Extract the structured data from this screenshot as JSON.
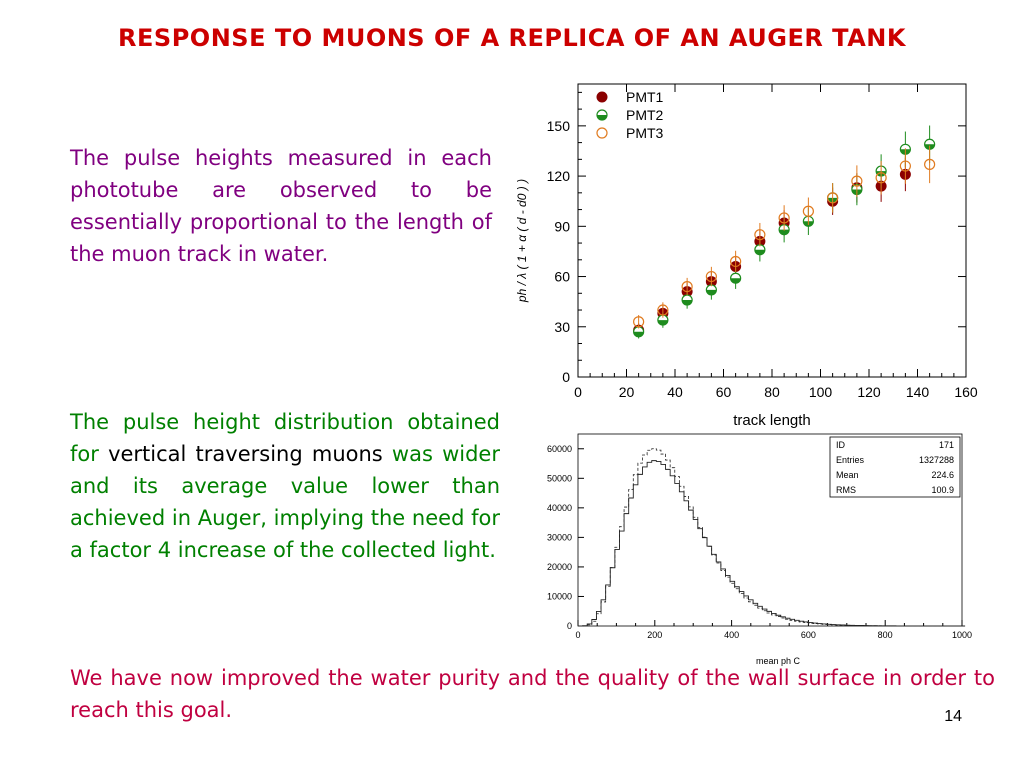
{
  "slide": {
    "title": "RESPONSE TO MUONS OF A REPLICA OF AN AUGER TANK",
    "para1": "The pulse heights measured in each phototube are observed to be essentially proportional to the length of the muon track in water.",
    "para2_a": "The pulse height distribution obtained for ",
    "para2_b": "vertical traversing muons",
    "para2_c": " was wider and its average value lower than achieved in Auger, implying the need for a factor 4 increase of the collected light.",
    "para3": "We have now improved the water purity and the quality of the wall surface in order to reach this goal.",
    "page_number": "14"
  },
  "colors": {
    "title": "#cc0000",
    "para1": "#800080",
    "para2": "#008000",
    "para3": "#c00040",
    "pmt1": "#8b0000",
    "pmt2": "#1e8c1e",
    "pmt3": "#e07b20"
  },
  "chart_data": [
    {
      "type": "scatter",
      "xlabel": "track length",
      "ylabel": "ph / λ ( 1 + α ( d - d0 ) )",
      "xlim": [
        0,
        160
      ],
      "ylim": [
        0,
        175
      ],
      "xticks": [
        0,
        20,
        40,
        60,
        80,
        100,
        120,
        140,
        160
      ],
      "yticks": [
        0,
        30,
        60,
        90,
        120,
        150
      ],
      "legend": "top-left",
      "series": [
        {
          "name": "PMT1",
          "style": "filled",
          "x": [
            25,
            35,
            45,
            55,
            65,
            75,
            85,
            105,
            115,
            125,
            135
          ],
          "y": [
            28,
            38,
            51,
            57,
            66,
            81,
            92,
            105,
            113,
            114,
            121
          ]
        },
        {
          "name": "PMT2",
          "style": "half",
          "x": [
            25,
            35,
            45,
            55,
            65,
            75,
            85,
            95,
            105,
            115,
            125,
            135,
            145
          ],
          "y": [
            27,
            34,
            46,
            52,
            59,
            76,
            88,
            93,
            107,
            112,
            123,
            136,
            139
          ]
        },
        {
          "name": "PMT3",
          "style": "open",
          "x": [
            25,
            35,
            45,
            55,
            65,
            75,
            85,
            95,
            105,
            115,
            125,
            135,
            145
          ],
          "y": [
            33,
            40,
            54,
            60,
            69,
            85,
            95,
            99,
            107,
            117,
            119,
            126,
            127
          ]
        }
      ]
    },
    {
      "type": "histogram",
      "xlabel": "mean ph C",
      "xlim": [
        0,
        1000
      ],
      "ylim": [
        0,
        65000
      ],
      "xticks": [
        0,
        200,
        400,
        600,
        800,
        1000
      ],
      "yticks": [
        0,
        10000,
        20000,
        30000,
        40000,
        50000,
        60000
      ],
      "stats": [
        {
          "label": "ID",
          "value": "171"
        },
        {
          "label": "Entries",
          "value": "1327288"
        },
        {
          "label": "Mean",
          "value": "224.6"
        },
        {
          "label": "RMS",
          "value": "100.9"
        }
      ],
      "peak_solid": 56000,
      "peak_dashed": 60000,
      "mode": 200
    }
  ]
}
